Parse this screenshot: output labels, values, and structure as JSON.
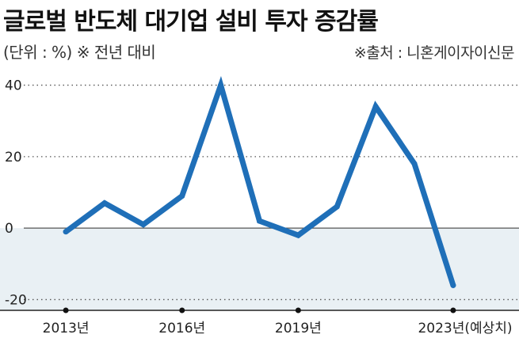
{
  "header": {
    "title": "글로벌 반도체 대기업 설비 투자 증감률",
    "subtitle": "(단위 : %)  ※ 전년 대비",
    "source": "※출처 : 니혼게이자이신문"
  },
  "colors": {
    "line": "#1f6fb8",
    "negative_band": "#e9f0f4",
    "grid": "#555555"
  },
  "chart_data": {
    "type": "line",
    "x": [
      2013,
      2014,
      2015,
      2016,
      2017,
      2018,
      2019,
      2020,
      2021,
      2022,
      2023
    ],
    "series": [
      {
        "values": [
          -1,
          7,
          1,
          9,
          40,
          2,
          -2,
          6,
          34,
          18,
          -16
        ]
      }
    ],
    "y_ticks": [
      40,
      20,
      0,
      -20
    ],
    "y_tick_labels": [
      "40",
      "20",
      "0",
      "-20"
    ],
    "x_ticks": [
      2013,
      2016,
      2019,
      2023
    ],
    "x_tick_labels": [
      "2013년",
      "2016년",
      "2019년",
      "2023년(예상치)"
    ],
    "ylim": [
      -23,
      45
    ],
    "xlim": [
      2011.3,
      2024.7
    ],
    "grid": "dotted horizontal",
    "legend": "none"
  }
}
